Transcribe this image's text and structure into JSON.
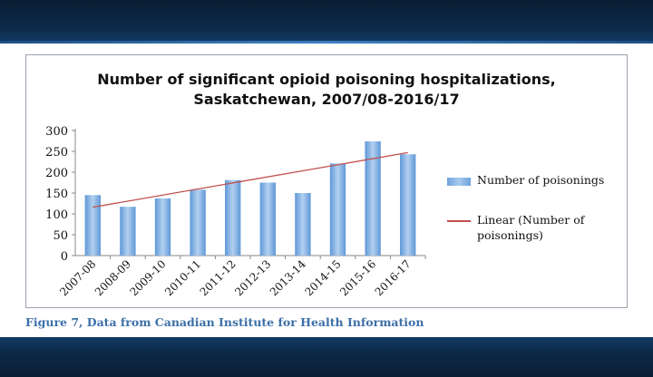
{
  "caption": "Figure 7, Data from Canadian Institute for Health Information",
  "chart_data": {
    "type": "bar",
    "title_lines": [
      "Number of significant opioid poisoning hospitalizations,",
      "Saskatchewan, 2007/08-2016/17"
    ],
    "categories": [
      "2007-08",
      "2008-09",
      "2009-10",
      "2010-11",
      "2011-12",
      "2012-13",
      "2013-14",
      "2014-15",
      "2015-16",
      "2016-17"
    ],
    "series": [
      {
        "name": "Number of poisonings",
        "values": [
          145,
          117,
          137,
          158,
          181,
          175,
          150,
          221,
          274,
          243
        ],
        "color": "#7fb0e6"
      }
    ],
    "trendline": {
      "name": "Linear (Number of poisonings)",
      "name_lines": [
        "Linear (Number of",
        "poisonings)"
      ],
      "start": 116,
      "end": 247,
      "color": "#c0504d"
    },
    "ylim": [
      0,
      300
    ],
    "yticks": [
      0,
      50,
      100,
      150,
      200,
      250,
      300
    ],
    "grid": false,
    "legend_position": "right"
  }
}
